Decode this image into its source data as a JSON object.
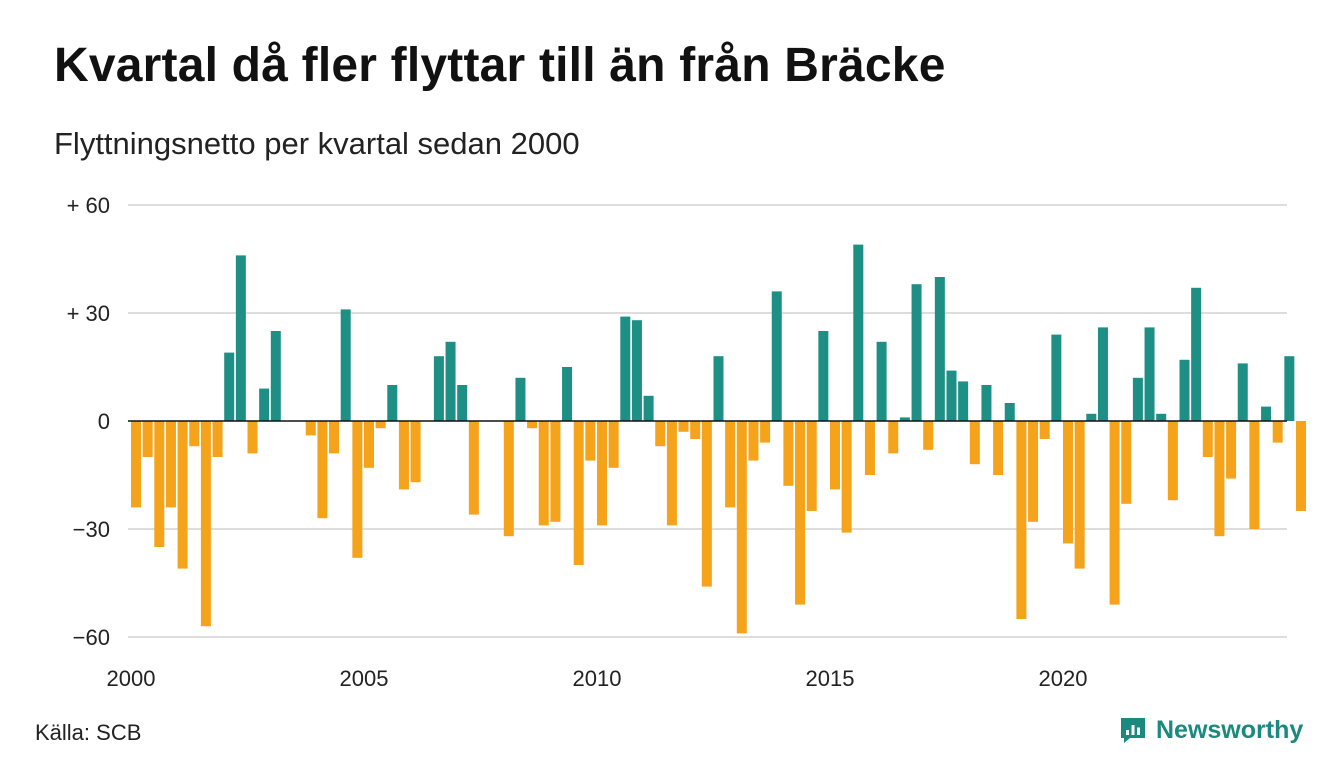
{
  "title": "Kvartal då fler flyttar till än från Bräcke",
  "subtitle": "Flyttningsnetto per kvartal sedan 2000",
  "source": "Källa: SCB",
  "logo": {
    "text": "Newsworthy",
    "icon": "chart-bubble-icon",
    "color": "#1a8a7e"
  },
  "colors": {
    "positive": "#1d8f85",
    "negative": "#f5a31a",
    "grid": "#dddddd",
    "baseline": "#111111"
  },
  "chart_data": {
    "type": "bar",
    "title": "Kvartal då fler flyttar till än från Bräcke",
    "subtitle": "Flyttningsnetto per kvartal sedan 2000",
    "xlabel": "",
    "ylabel": "",
    "x_start": "2000 Q1",
    "x_ticks": [
      "2000",
      "2005",
      "2010",
      "2015",
      "2020"
    ],
    "y_ticks": [
      {
        "value": 60,
        "label": "+ 60"
      },
      {
        "value": 30,
        "label": "+ 30"
      },
      {
        "value": 0,
        "label": "0"
      },
      {
        "value": -30,
        "label": "−30"
      },
      {
        "value": -60,
        "label": "−60"
      }
    ],
    "ylim": [
      -60,
      60
    ],
    "grid": true,
    "values": [
      -24,
      -10,
      -35,
      -24,
      -41,
      -7,
      -57,
      -10,
      19,
      46,
      -9,
      9,
      25,
      0,
      0,
      -4,
      -27,
      -9,
      31,
      -38,
      -13,
      -2,
      10,
      -19,
      -17,
      0,
      18,
      22,
      10,
      -26,
      0,
      0,
      -32,
      12,
      -2,
      -29,
      -28,
      15,
      -40,
      -11,
      -29,
      -13,
      29,
      28,
      7,
      -7,
      -29,
      -3,
      -5,
      -46,
      18,
      -24,
      -59,
      -11,
      -6,
      36,
      -18,
      -51,
      -25,
      25,
      -19,
      -31,
      49,
      -15,
      22,
      -9,
      1,
      38,
      -8,
      40,
      14,
      11,
      -12,
      10,
      -15,
      5,
      -55,
      -28,
      -5,
      24,
      -34,
      -41,
      2,
      26,
      -51,
      -23,
      12,
      26,
      2,
      -22,
      17,
      37,
      -10,
      -32,
      -16,
      16,
      -30,
      4,
      -6,
      18,
      -25
    ]
  }
}
